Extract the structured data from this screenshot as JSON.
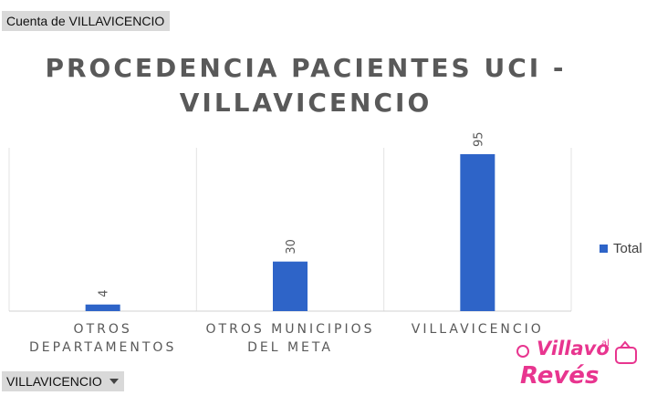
{
  "pivot": {
    "value_field": "Cuenta de VILLAVICENCIO",
    "axis_field": "VILLAVICENCIO"
  },
  "chart_data": {
    "type": "bar",
    "title": "PROCEDENCIA PACIENTES UCI - VILLAVICENCIO",
    "title_lines": [
      "PROCEDENCIA PACIENTES UCI -",
      "VILLAVICENCIO"
    ],
    "categories": [
      "OTROS DEPARTAMENTOS",
      "OTROS MUNICIPIOS DEL META",
      "VILLAVICENCIO"
    ],
    "category_lines": [
      [
        "OTROS",
        "DEPARTAMENTOS"
      ],
      [
        "OTROS MUNICIPIOS",
        "DEL META"
      ],
      [
        "VILLAVICENCIO"
      ]
    ],
    "series": [
      {
        "name": "Total",
        "values": [
          4,
          30,
          95
        ],
        "color": "#2e64c8"
      }
    ],
    "data_labels": [
      "4",
      "30",
      "95"
    ],
    "ylim": [
      0,
      95
    ],
    "grid": "vertical separators",
    "legend": "right"
  },
  "logo": {
    "line1": "Villavo",
    "line2": "Revés",
    "small": "al",
    "color": "#e8358f"
  }
}
